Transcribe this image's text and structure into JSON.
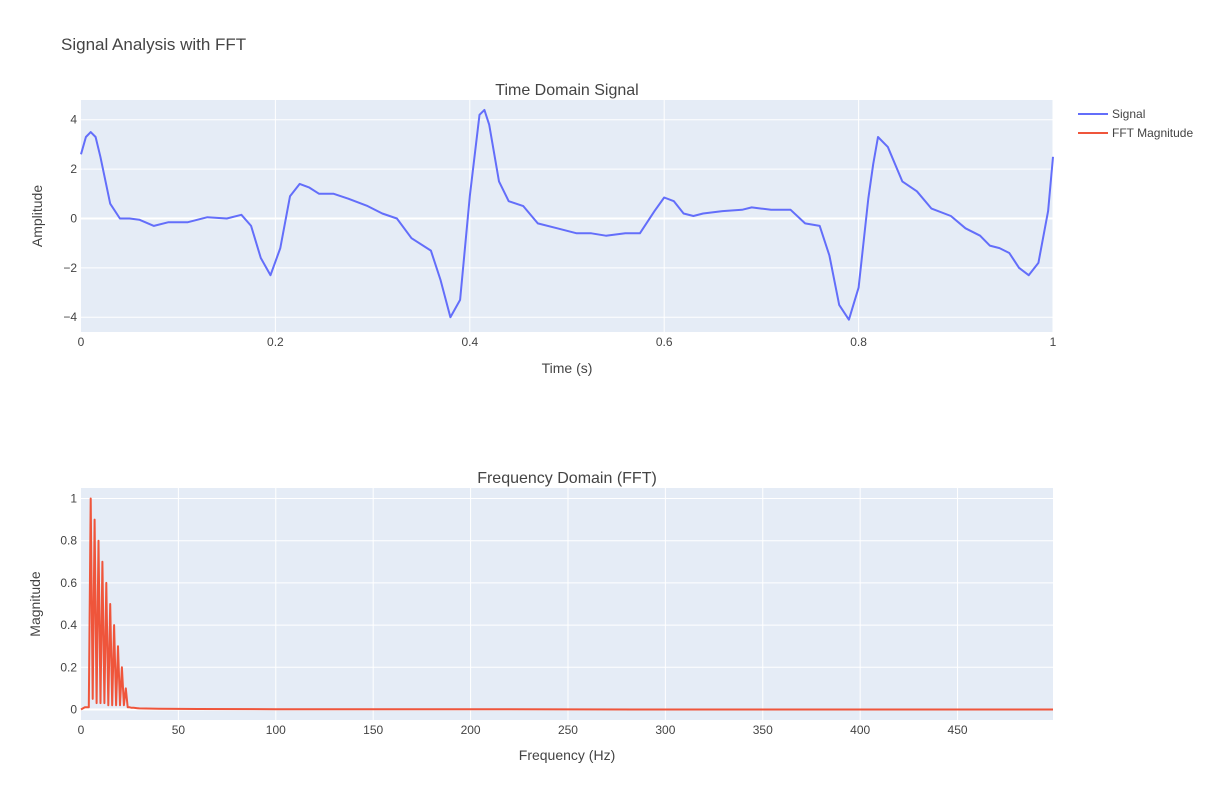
{
  "title": "Signal Analysis with FFT",
  "legend": {
    "placement": "top-right",
    "items": [
      {
        "label": "Signal",
        "color": "#636efa"
      },
      {
        "label": "FFT Magnitude",
        "color": "#ef553b"
      }
    ]
  },
  "chart_data": [
    {
      "type": "line",
      "title": "Time Domain Signal",
      "xlabel": "Time (s)",
      "ylabel": "Amplitude",
      "xlim": [
        0,
        1
      ],
      "ylim": [
        -4.6,
        4.8
      ],
      "grid": true,
      "x_ticks": [
        0,
        0.2,
        0.4,
        0.6,
        0.8,
        1
      ],
      "x_tick_labels": [
        "0",
        "0.2",
        "0.4",
        "0.6",
        "0.8",
        "1"
      ],
      "y_ticks": [
        -4,
        -2,
        0,
        2,
        4
      ],
      "y_tick_labels": [
        "−4",
        "−2",
        "0",
        "2",
        "4"
      ],
      "series": [
        {
          "name": "Signal",
          "color": "#636efa",
          "x": [
            0,
            0.005,
            0.01,
            0.015,
            0.02,
            0.03,
            0.04,
            0.05,
            0.06,
            0.075,
            0.09,
            0.1,
            0.11,
            0.13,
            0.15,
            0.165,
            0.175,
            0.185,
            0.195,
            0.205,
            0.215,
            0.225,
            0.235,
            0.245,
            0.26,
            0.275,
            0.295,
            0.31,
            0.325,
            0.34,
            0.36,
            0.37,
            0.38,
            0.39,
            0.4,
            0.41,
            0.415,
            0.42,
            0.43,
            0.44,
            0.455,
            0.47,
            0.49,
            0.51,
            0.525,
            0.54,
            0.56,
            0.575,
            0.59,
            0.6,
            0.61,
            0.62,
            0.63,
            0.64,
            0.66,
            0.68,
            0.69,
            0.7,
            0.71,
            0.73,
            0.745,
            0.76,
            0.77,
            0.78,
            0.79,
            0.8,
            0.81,
            0.815,
            0.82,
            0.83,
            0.845,
            0.86,
            0.875,
            0.895,
            0.91,
            0.925,
            0.935,
            0.945,
            0.955,
            0.965,
            0.975,
            0.985,
            0.995,
            1
          ],
          "y": [
            2.6,
            3.3,
            3.5,
            3.3,
            2.5,
            0.6,
            0.0,
            0.0,
            -0.05,
            -0.3,
            -0.15,
            -0.15,
            -0.15,
            0.05,
            0.0,
            0.15,
            -0.3,
            -1.6,
            -2.3,
            -1.2,
            0.9,
            1.4,
            1.25,
            1.0,
            1.0,
            0.8,
            0.5,
            0.2,
            0.0,
            -0.8,
            -1.3,
            -2.5,
            -4.0,
            -3.3,
            0.9,
            4.2,
            4.4,
            3.8,
            1.5,
            0.7,
            0.5,
            -0.2,
            -0.4,
            -0.6,
            -0.6,
            -0.7,
            -0.6,
            -0.6,
            0.3,
            0.85,
            0.7,
            0.2,
            0.1,
            0.2,
            0.3,
            0.35,
            0.45,
            0.4,
            0.35,
            0.35,
            -0.2,
            -0.3,
            -1.5,
            -3.5,
            -4.1,
            -2.8,
            0.8,
            2.2,
            3.3,
            2.9,
            1.5,
            1.1,
            0.4,
            0.1,
            -0.4,
            -0.7,
            -1.1,
            -1.2,
            -1.4,
            -2.0,
            -2.3,
            -1.8,
            0.3,
            2.5
          ]
        }
      ]
    },
    {
      "type": "line",
      "title": "Frequency Domain (FFT)",
      "xlabel": "Frequency (Hz)",
      "ylabel": "Magnitude",
      "xlim": [
        0,
        499
      ],
      "ylim": [
        -0.05,
        1.05
      ],
      "grid": true,
      "x_ticks": [
        0,
        50,
        100,
        150,
        200,
        250,
        300,
        350,
        400,
        450
      ],
      "x_tick_labels": [
        "0",
        "50",
        "100",
        "150",
        "200",
        "250",
        "300",
        "350",
        "400",
        "450"
      ],
      "y_ticks": [
        0,
        0.2,
        0.4,
        0.6,
        0.8,
        1
      ],
      "y_tick_labels": [
        "0",
        "0.2",
        "0.4",
        "0.6",
        "0.8",
        "1"
      ],
      "series": [
        {
          "name": "FFT Magnitude",
          "color": "#ef553b",
          "x": [
            0,
            1,
            2,
            3,
            4,
            5,
            6,
            7,
            8,
            9,
            10,
            11,
            12,
            13,
            14,
            15,
            16,
            17,
            18,
            19,
            20,
            21,
            22,
            23,
            24,
            25,
            26,
            27,
            28,
            29,
            30,
            40,
            60,
            100,
            200,
            300,
            400,
            499
          ],
          "y": [
            0.0,
            0.005,
            0.01,
            0.01,
            0.01,
            1.0,
            0.05,
            0.9,
            0.03,
            0.8,
            0.03,
            0.7,
            0.03,
            0.6,
            0.02,
            0.5,
            0.02,
            0.4,
            0.02,
            0.3,
            0.02,
            0.2,
            0.02,
            0.1,
            0.01,
            0.01,
            0.008,
            0.008,
            0.007,
            0.006,
            0.005,
            0.003,
            0.002,
            0.001,
            0.001,
            0.0,
            0.0,
            0.0
          ]
        }
      ]
    }
  ]
}
